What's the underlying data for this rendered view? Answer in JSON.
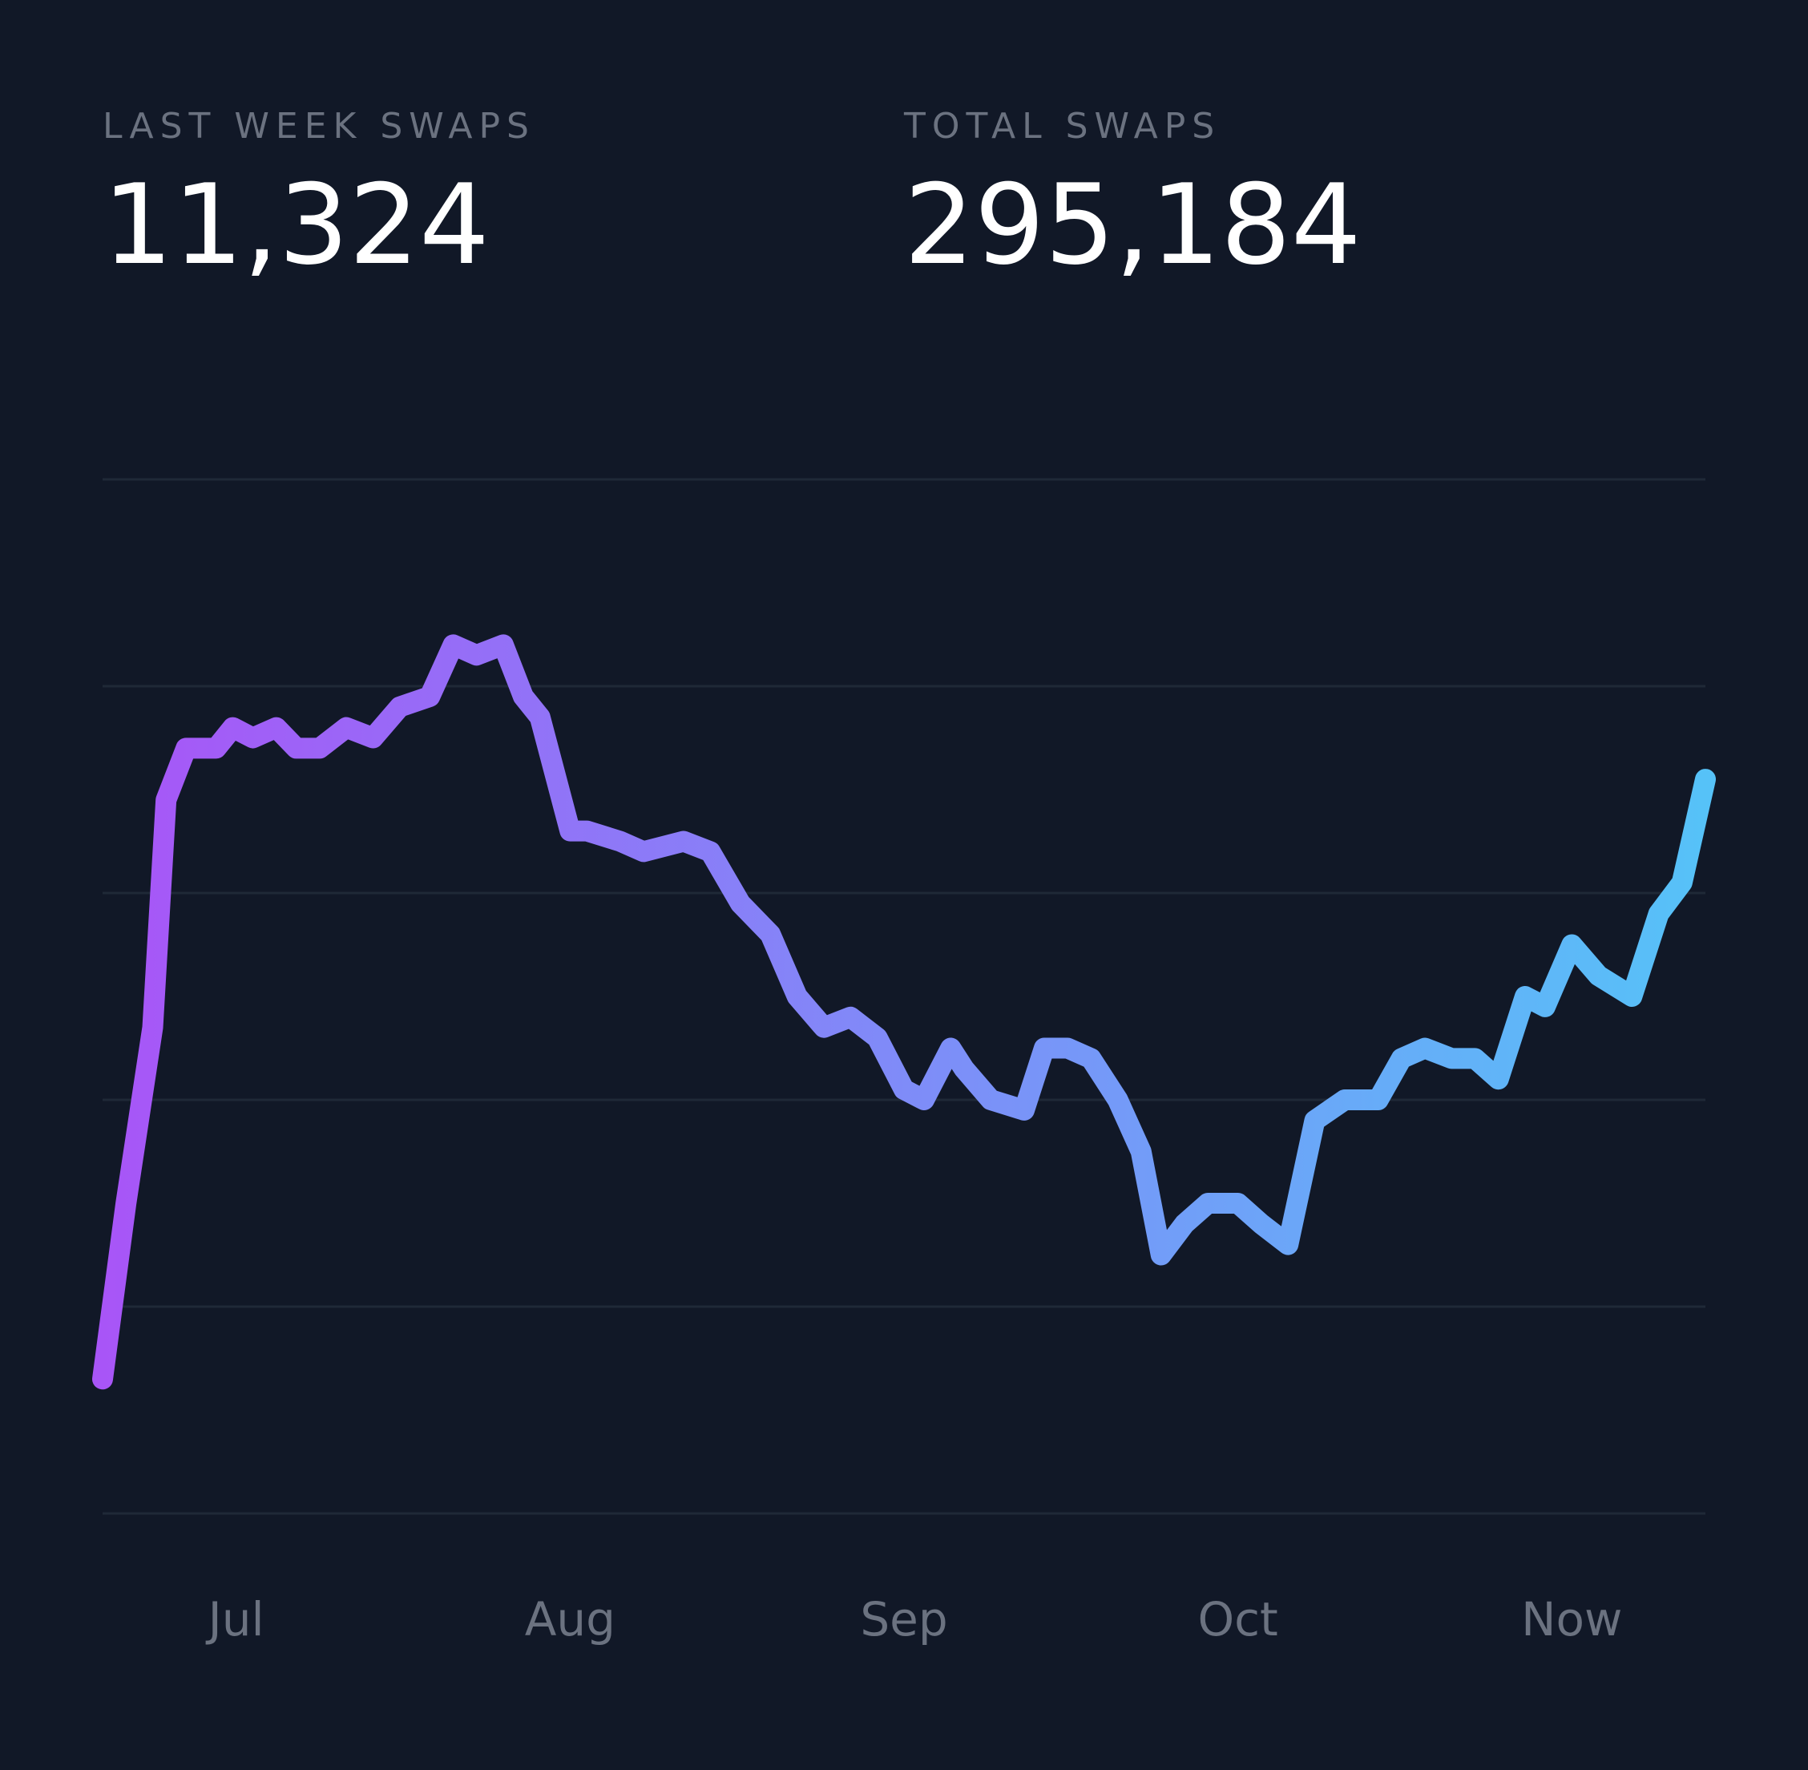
{
  "stats": {
    "last_week": {
      "label": "LAST WEEK SWAPS",
      "value": "11,324"
    },
    "total": {
      "label": "TOTAL SWAPS",
      "value": "295,184"
    }
  },
  "colors": {
    "background": "#111827",
    "grid": "#1f2937",
    "label": "#6b7280",
    "value": "#ffffff",
    "line_start": "#a855f7",
    "line_end": "#56c2f8"
  },
  "chart_data": {
    "type": "line",
    "title": "",
    "xlabel": "",
    "ylabel": "",
    "grid": true,
    "y_axis_labels_shown": false,
    "ylim": [
      0,
      100
    ],
    "x_ticks": [
      {
        "label": "Jul",
        "x": 4
      },
      {
        "label": "Aug",
        "x": 14
      },
      {
        "label": "Sep",
        "x": 24
      },
      {
        "label": "Oct",
        "x": 34
      },
      {
        "label": "Now",
        "x": 44
      }
    ],
    "xlim": [
      0,
      48
    ],
    "series": [
      {
        "x": [
          0,
          0.7,
          1.5,
          1.9,
          2.5,
          3.4,
          3.9,
          4.5,
          5.2,
          5.8,
          6.5,
          7.3,
          8.1,
          8.9,
          9.8,
          10.5,
          11.2,
          12.0,
          12.6,
          13.1,
          14.0,
          14.5,
          15.5,
          16.2,
          17.4,
          18.2,
          19.1,
          20.0,
          20.8,
          21.6,
          22.4,
          23.2,
          24.0,
          24.6,
          25.4,
          25.8,
          26.6,
          27.6,
          28.2,
          28.9,
          29.6,
          30.4,
          31.1,
          31.7,
          32.4,
          33.1,
          34.0,
          34.7,
          35.5,
          36.3,
          37.2,
          38.2,
          38.9,
          39.6,
          40.4,
          41.1,
          41.8,
          42.6,
          43.2,
          44.0,
          44.8,
          45.8,
          46.6,
          47.3,
          48.0
        ],
        "y": [
          13,
          30,
          47,
          69,
          74,
          74,
          76,
          75,
          76,
          74,
          74,
          76,
          75,
          78,
          79,
          84,
          83,
          84,
          79,
          77,
          66,
          66,
          65,
          64,
          65,
          64,
          59,
          56,
          50,
          47,
          48,
          46,
          41,
          40,
          45,
          43,
          40,
          39,
          45,
          45,
          44,
          40,
          35,
          25,
          28,
          30,
          30,
          28,
          26,
          38,
          40,
          40,
          44,
          45,
          44,
          44,
          42,
          50,
          49,
          55,
          52,
          50,
          58,
          61,
          71
        ]
      }
    ]
  }
}
